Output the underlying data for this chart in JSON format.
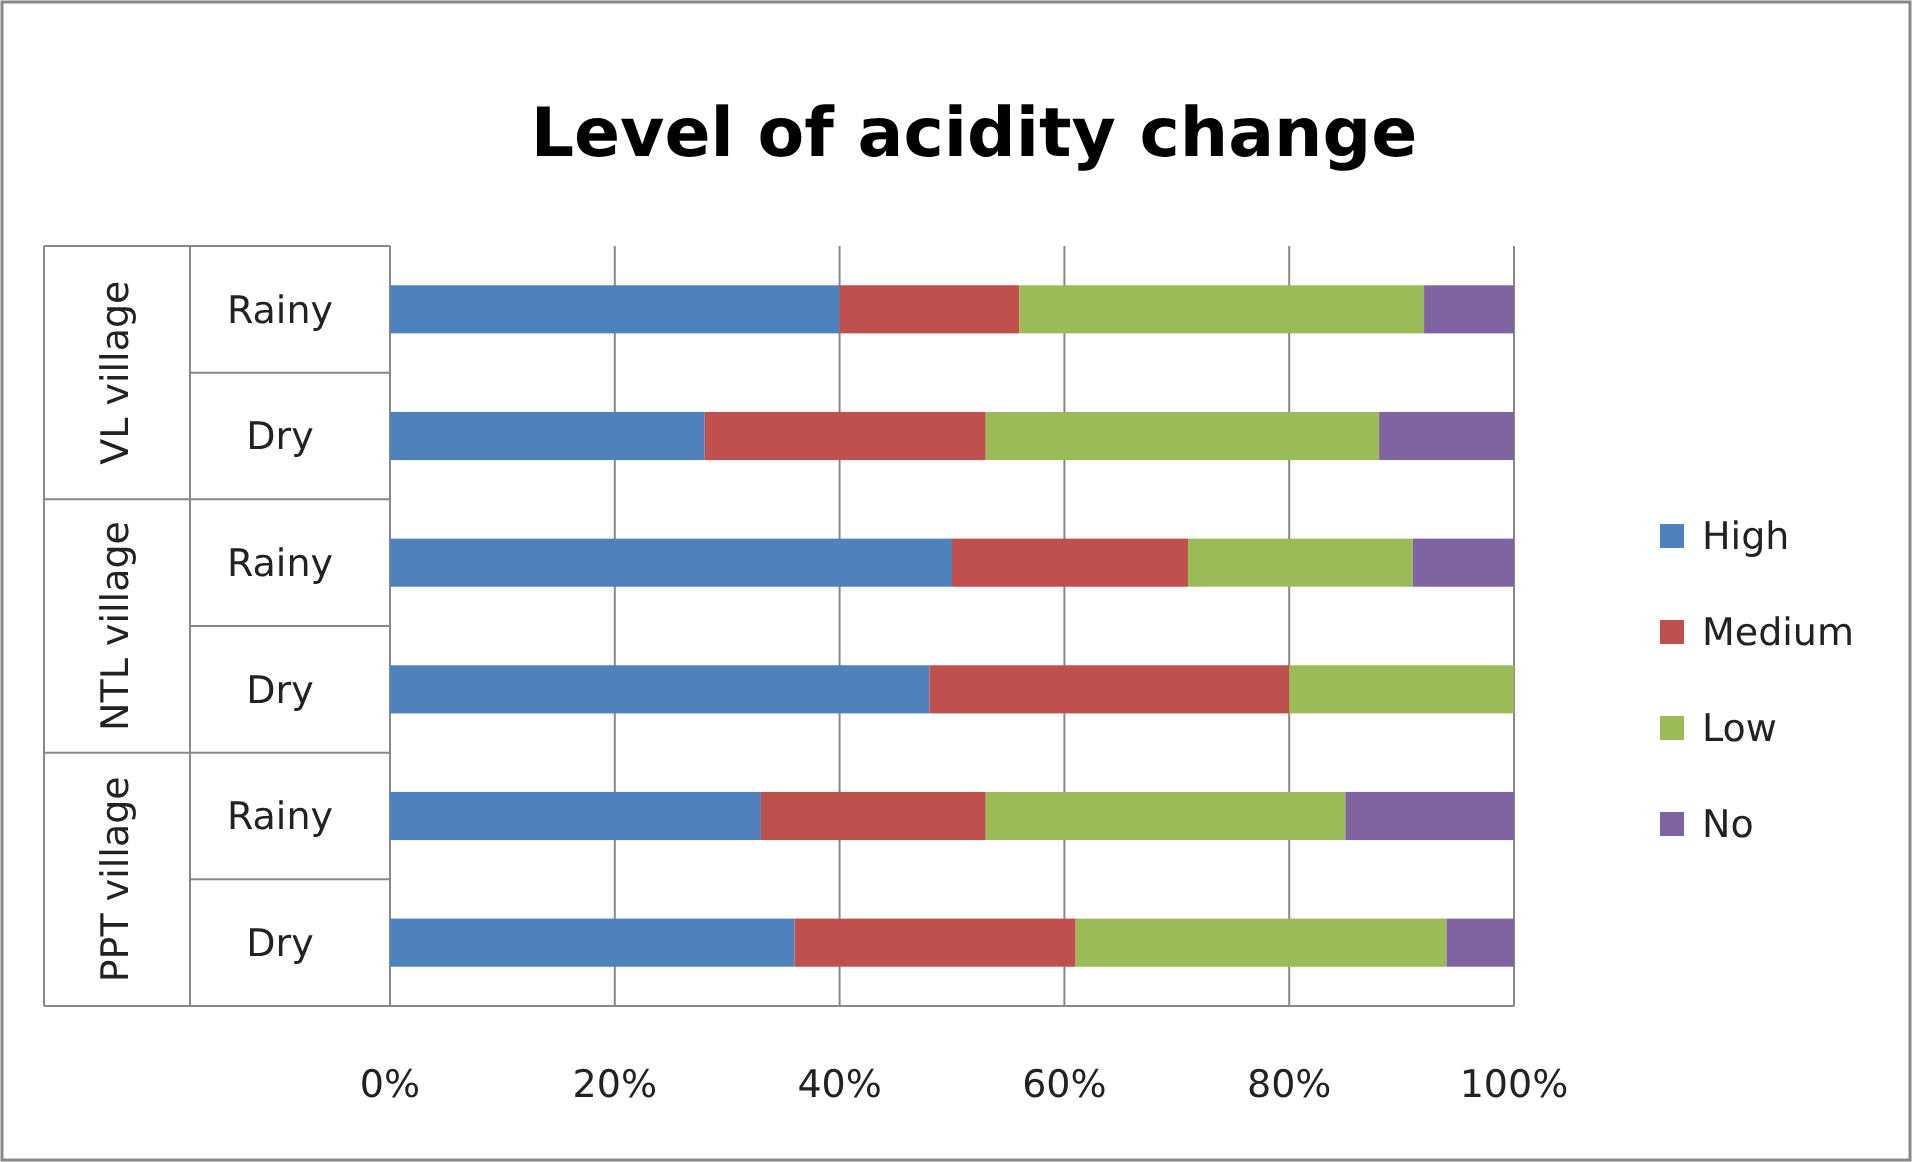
{
  "chart_data": {
    "type": "bar",
    "orientation": "horizontal",
    "stacked": true,
    "title": "Level of acidity change",
    "categories": [
      "Rainy",
      "Dry",
      "Rainy",
      "Dry",
      "Rainy",
      "Dry"
    ],
    "series": [
      {
        "name": "High",
        "color": "#4f81bd",
        "values": [
          40,
          28,
          50,
          48,
          33,
          36
        ]
      },
      {
        "name": "Medium",
        "color": "#c0504d",
        "values": [
          16,
          25,
          21,
          32,
          20,
          25
        ]
      },
      {
        "name": "Low",
        "color": "#9bbb59",
        "values": [
          36,
          35,
          20,
          20,
          32,
          33
        ]
      },
      {
        "name": "No",
        "color": "#8064a2",
        "values": [
          8,
          12,
          9,
          0,
          15,
          6
        ]
      }
    ],
    "annotations": [
      "VL village",
      "NTL village",
      "PPT village"
    ],
    "xlim": [
      0,
      100
    ],
    "xticks": [
      {
        "value": 0,
        "label": "0%"
      },
      {
        "value": 20,
        "label": "20%"
      },
      {
        "value": 40,
        "label": "40%"
      },
      {
        "value": 60,
        "label": "60%"
      },
      {
        "value": 80,
        "label": "80%"
      },
      {
        "value": 100,
        "label": "100%"
      }
    ],
    "grid": "x",
    "legend": "right"
  }
}
